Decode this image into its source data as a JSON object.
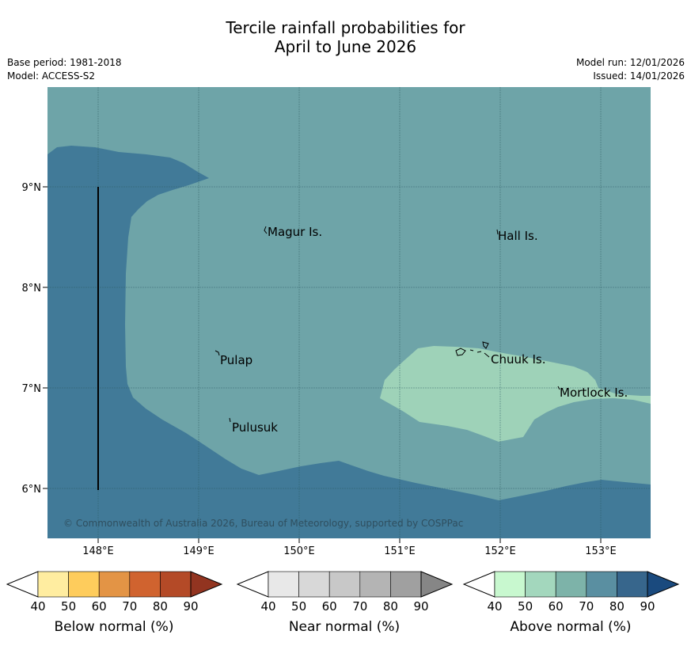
{
  "header": {
    "title_line1": "Tercile rainfall probabilities for",
    "title_line2": "April to June 2026",
    "base_period": "Base period: 1981-2018",
    "model": "Model: ACCESS-S2",
    "model_run": "Model run: 12/01/2026",
    "issued": "Issued: 14/01/2026"
  },
  "map": {
    "y_ticks": [
      "9°N",
      "8°N",
      "7°N",
      "6°N"
    ],
    "x_ticks": [
      "148°E",
      "149°E",
      "150°E",
      "151°E",
      "152°E",
      "153°E"
    ],
    "places": [
      {
        "name": "Magur Is."
      },
      {
        "name": "Hall Is."
      },
      {
        "name": "Pulap"
      },
      {
        "name": "Chuuk Is."
      },
      {
        "name": "Mortlock Is."
      },
      {
        "name": "Pulusuk"
      }
    ],
    "copyright": "© Commonwealth of Australia 2026, Bureau of Meteorology, supported by COSPPac",
    "colors": {
      "above_70_80": "#6ea4a8",
      "above_80_90": "#417a98",
      "above_50_60": "#9ed2b8"
    }
  },
  "colorbars": [
    {
      "title": "Below normal (%)",
      "ticks": [
        "40",
        "50",
        "60",
        "70",
        "80",
        "90"
      ],
      "colors": [
        "#ffffff",
        "#ffeda0",
        "#fecc5c",
        "#e39445",
        "#d0632f",
        "#b44a27",
        "#923420"
      ]
    },
    {
      "title": "Near normal (%)",
      "ticks": [
        "40",
        "50",
        "60",
        "70",
        "80",
        "90"
      ],
      "colors": [
        "#ffffff",
        "#e8e8e8",
        "#d8d8d8",
        "#c8c8c8",
        "#b4b4b4",
        "#a0a0a0",
        "#868686"
      ]
    },
    {
      "title": "Above normal (%)",
      "ticks": [
        "40",
        "50",
        "60",
        "70",
        "80",
        "90"
      ],
      "colors": [
        "#ffffff",
        "#c8f8cf",
        "#a3d7bd",
        "#7db3a9",
        "#5a8fa1",
        "#37668c",
        "#1a4a7e"
      ]
    }
  ]
}
